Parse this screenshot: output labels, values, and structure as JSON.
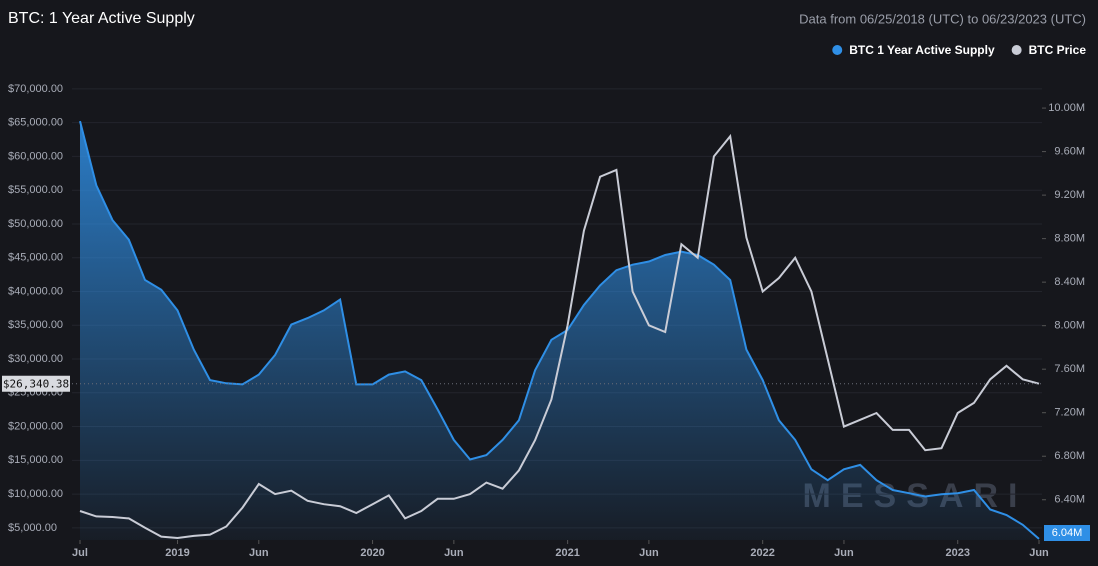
{
  "chart_data": {
    "type": "line",
    "title": "BTC: 1 Year Active Supply",
    "subtitle": "Data from 06/25/2018 (UTC) to 06/23/2023 (UTC)",
    "watermark": "MESSARI",
    "legend": "top-right",
    "grid": true,
    "x": [
      "2018-07",
      "2018-08",
      "2018-09",
      "2018-10",
      "2018-11",
      "2018-12",
      "2019-01",
      "2019-02",
      "2019-03",
      "2019-04",
      "2019-05",
      "2019-06",
      "2019-07",
      "2019-08",
      "2019-09",
      "2019-10",
      "2019-11",
      "2019-12",
      "2020-01",
      "2020-02",
      "2020-03",
      "2020-04",
      "2020-05",
      "2020-06",
      "2020-07",
      "2020-08",
      "2020-09",
      "2020-10",
      "2020-11",
      "2020-12",
      "2021-01",
      "2021-02",
      "2021-03",
      "2021-04",
      "2021-05",
      "2021-06",
      "2021-07",
      "2021-08",
      "2021-09",
      "2021-10",
      "2021-11",
      "2021-12",
      "2022-01",
      "2022-02",
      "2022-03",
      "2022-04",
      "2022-05",
      "2022-06",
      "2022-07",
      "2022-08",
      "2022-09",
      "2022-10",
      "2022-11",
      "2022-12",
      "2023-01",
      "2023-02",
      "2023-03",
      "2023-04",
      "2023-05",
      "2023-06"
    ],
    "xticks": [
      {
        "value": "2018-07",
        "label": "Jul"
      },
      {
        "value": "2019-01",
        "label": "2019"
      },
      {
        "value": "2019-06",
        "label": "Jun"
      },
      {
        "value": "2020-01",
        "label": "2020"
      },
      {
        "value": "2020-06",
        "label": "Jun"
      },
      {
        "value": "2021-01",
        "label": "2021"
      },
      {
        "value": "2021-06",
        "label": "Jun"
      },
      {
        "value": "2022-01",
        "label": "2022"
      },
      {
        "value": "2022-06",
        "label": "Jun"
      },
      {
        "value": "2023-01",
        "label": "2023"
      },
      {
        "value": "2023-06",
        "label": "Jun"
      }
    ],
    "ylim": [
      3200,
      72800
    ],
    "yticks": [
      {
        "value": 5000,
        "label": "$5,000.00"
      },
      {
        "value": 10000,
        "label": "$10,000.00"
      },
      {
        "value": 15000,
        "label": "$15,000.00"
      },
      {
        "value": 20000,
        "label": "$20,000.00"
      },
      {
        "value": 25000,
        "label": "$25,000.00"
      },
      {
        "value": 30000,
        "label": "$30,000.00"
      },
      {
        "value": 35000,
        "label": "$35,000.00"
      },
      {
        "value": 40000,
        "label": "$40,000.00"
      },
      {
        "value": 45000,
        "label": "$45,000.00"
      },
      {
        "value": 50000,
        "label": "$50,000.00"
      },
      {
        "value": 55000,
        "label": "$55,000.00"
      },
      {
        "value": 60000,
        "label": "$60,000.00"
      },
      {
        "value": 65000,
        "label": "$65,000.00"
      },
      {
        "value": 70000,
        "label": "$70,000.00"
      }
    ],
    "y2lim": [
      6.03,
      10.35
    ],
    "y2ticks": [
      {
        "value": 6.4,
        "label": "6.40M"
      },
      {
        "value": 6.8,
        "label": "6.80M"
      },
      {
        "value": 7.2,
        "label": "7.20M"
      },
      {
        "value": 7.6,
        "label": "7.60M"
      },
      {
        "value": 8,
        "label": "8.00M"
      },
      {
        "value": 8.4,
        "label": "8.40M"
      },
      {
        "value": 8.8,
        "label": "8.80M"
      },
      {
        "value": 9.2,
        "label": "9.20M"
      },
      {
        "value": 9.6,
        "label": "9.60M"
      },
      {
        "value": 10,
        "label": "10.00M"
      }
    ],
    "series": [
      {
        "name": "BTC 1 Year Active Supply",
        "color": "#2f8fe6",
        "axis": "y2",
        "values": [
          9.88,
          9.29,
          8.97,
          8.79,
          8.42,
          8.33,
          8.14,
          7.78,
          7.5,
          7.47,
          7.46,
          7.55,
          7.73,
          8.01,
          8.07,
          8.14,
          8.24,
          7.46,
          7.46,
          7.55,
          7.58,
          7.5,
          7.23,
          6.95,
          6.77,
          6.81,
          6.95,
          7.13,
          7.59,
          7.87,
          7.96,
          8.19,
          8.37,
          8.51,
          8.56,
          8.59,
          8.65,
          8.68,
          8.65,
          8.56,
          8.42,
          7.78,
          7.5,
          7.13,
          6.95,
          6.68,
          6.58,
          6.68,
          6.72,
          6.58,
          6.49,
          6.46,
          6.43,
          6.45,
          6.46,
          6.49,
          6.31,
          6.26,
          6.17,
          6.04
        ],
        "value_labels": [
          null,
          null,
          null,
          null,
          null,
          null,
          null,
          null,
          null,
          null,
          null,
          null,
          null,
          null,
          null,
          null,
          null,
          null,
          null,
          null,
          null,
          null,
          null,
          null,
          null,
          null,
          null,
          null,
          null,
          null,
          null,
          null,
          null,
          null,
          null,
          null,
          null,
          null,
          null,
          null,
          null,
          null,
          null,
          null,
          null,
          null,
          null,
          null,
          null,
          null,
          null,
          null,
          null,
          null,
          null,
          null,
          null,
          null,
          null,
          "6.04M"
        ]
      },
      {
        "name": "BTC Price",
        "color": "#c9ccd6",
        "axis": "y",
        "values": [
          7500,
          6700,
          6600,
          6400,
          5000,
          3700,
          3500,
          3800,
          4000,
          5200,
          8000,
          11500,
          10000,
          10500,
          9000,
          8500,
          8200,
          7200,
          8500,
          9800,
          6400,
          7500,
          9300,
          9300,
          10000,
          11700,
          10800,
          13500,
          18000,
          24000,
          35000,
          49000,
          57000,
          58000,
          40000,
          35000,
          34000,
          47000,
          45000,
          60000,
          63000,
          48000,
          40000,
          42000,
          45000,
          40000,
          30000,
          20000,
          21000,
          22000,
          19500,
          19500,
          16500,
          16800,
          22000,
          23500,
          27000,
          29000,
          27000,
          26340.38
        ],
        "value_labels": [
          null,
          null,
          null,
          null,
          null,
          null,
          null,
          null,
          null,
          null,
          null,
          null,
          null,
          null,
          null,
          null,
          null,
          null,
          null,
          null,
          null,
          null,
          null,
          null,
          null,
          null,
          null,
          null,
          null,
          null,
          null,
          null,
          null,
          null,
          null,
          null,
          null,
          null,
          null,
          null,
          null,
          null,
          null,
          null,
          null,
          null,
          null,
          null,
          null,
          null,
          null,
          null,
          null,
          null,
          null,
          null,
          null,
          null,
          null,
          "$26,340.38"
        ]
      }
    ]
  }
}
